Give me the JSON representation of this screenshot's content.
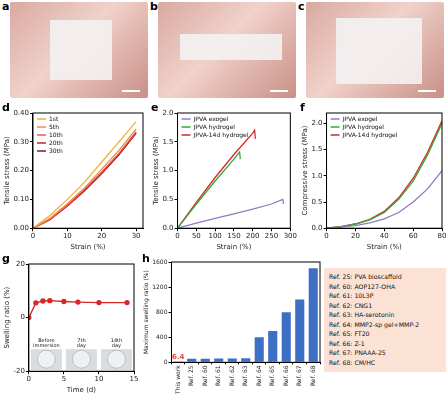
{
  "photos": [
    {
      "panel_label": "a"
    },
    {
      "panel_label": "b"
    },
    {
      "panel_label": "c"
    }
  ],
  "chart_data": [
    {
      "panel_label": "d",
      "type": "line",
      "x_label": "Strain (%)",
      "y_label": "Tensile stress (MPa)",
      "xlim": [
        0,
        32
      ],
      "xticks": [
        0,
        10,
        20,
        30
      ],
      "ylim": [
        0,
        0.4
      ],
      "yticks": [
        {
          "value": 0,
          "label": "0.00"
        },
        {
          "value": 0.1,
          "label": "0.10"
        },
        {
          "value": 0.2,
          "label": "0.20"
        },
        {
          "value": 0.3,
          "label": "0.30"
        },
        {
          "value": 0.4,
          "label": "0.40"
        }
      ],
      "grid": false,
      "legend": "top-left",
      "series": [
        {
          "name": "1st",
          "color": "#f2b134",
          "x": [
            0,
            5,
            10,
            15,
            20,
            25,
            30
          ],
          "values": [
            0,
            0.045,
            0.1,
            0.16,
            0.23,
            0.3,
            0.37
          ]
        },
        {
          "name": "5th",
          "color": "#f08a4b",
          "x": [
            0,
            5,
            10,
            15,
            20,
            25,
            30
          ],
          "values": [
            0,
            0.035,
            0.085,
            0.14,
            0.205,
            0.27,
            0.345
          ]
        },
        {
          "name": "10th",
          "color": "#e8584a",
          "x": [
            0,
            5,
            10,
            15,
            20,
            25,
            30
          ],
          "values": [
            0,
            0.03,
            0.08,
            0.135,
            0.195,
            0.26,
            0.335
          ]
        },
        {
          "name": "20th",
          "color": "#c8202a",
          "x": [
            0,
            5,
            10,
            15,
            20,
            25,
            30
          ],
          "values": [
            0,
            0.03,
            0.078,
            0.132,
            0.192,
            0.258,
            0.33
          ]
        },
        {
          "name": "30th",
          "color": "#8b1a1a",
          "x": [
            0,
            5,
            10,
            15,
            20,
            25,
            30
          ],
          "values": [
            0,
            0.03,
            0.077,
            0.13,
            0.19,
            0.255,
            0.33
          ]
        }
      ]
    },
    {
      "panel_label": "e",
      "type": "line",
      "x_label": "Strain (%)",
      "y_label": "Tensile stress (MPa)",
      "xlim": [
        0,
        300
      ],
      "xticks": [
        0,
        50,
        100,
        150,
        200,
        250,
        300
      ],
      "ylim": [
        0,
        2
      ],
      "yticks": [
        {
          "value": 0,
          "label": "0.0"
        },
        {
          "value": 0.5,
          "label": "0.5"
        },
        {
          "value": 1,
          "label": "1.0"
        },
        {
          "value": 1.5,
          "label": "1.5"
        },
        {
          "value": 2,
          "label": "2.0"
        }
      ],
      "grid": false,
      "legend": "top-left",
      "series": [
        {
          "name": "JPVA exogel",
          "color": "#8e7cc3",
          "x": [
            0,
            50,
            100,
            150,
            200,
            250,
            280,
            282
          ],
          "values": [
            0,
            0.09,
            0.17,
            0.25,
            0.33,
            0.42,
            0.5,
            0.42
          ]
        },
        {
          "name": "JPVA hydrogel",
          "color": "#3aa63a",
          "x": [
            0,
            50,
            100,
            150,
            165,
            167
          ],
          "values": [
            0,
            0.42,
            0.82,
            1.2,
            1.32,
            1.2
          ]
        },
        {
          "name": "JPVA-14d hydrogel",
          "color": "#d62728",
          "x": [
            0,
            50,
            100,
            150,
            200,
            205,
            207
          ],
          "values": [
            0,
            0.45,
            0.88,
            1.28,
            1.65,
            1.7,
            1.55
          ]
        }
      ]
    },
    {
      "panel_label": "f",
      "type": "line",
      "x_label": "Strain (%)",
      "y_label": "Compressive stress (MPa)",
      "xlim": [
        0,
        80
      ],
      "xticks": [
        0,
        20,
        40,
        60,
        80
      ],
      "ylim": [
        0,
        2.2
      ],
      "yticks": [
        {
          "value": 0,
          "label": "0.0"
        },
        {
          "value": 0.5,
          "label": "0.5"
        },
        {
          "value": 1,
          "label": "1.0"
        },
        {
          "value": 1.5,
          "label": "1.5"
        },
        {
          "value": 2,
          "label": "2.0"
        }
      ],
      "grid": false,
      "legend": "top-left",
      "series": [
        {
          "name": "JPVA exogel",
          "color": "#8e7cc3",
          "x": [
            0,
            10,
            20,
            30,
            40,
            50,
            60,
            70,
            80
          ],
          "values": [
            0,
            0.02,
            0.05,
            0.1,
            0.18,
            0.3,
            0.5,
            0.75,
            1.1
          ]
        },
        {
          "name": "JPVA hydrogel",
          "color": "#3aa63a",
          "x": [
            0,
            10,
            20,
            30,
            40,
            50,
            60,
            70,
            80
          ],
          "values": [
            0,
            0.03,
            0.08,
            0.16,
            0.3,
            0.55,
            0.9,
            1.4,
            2.0
          ]
        },
        {
          "name": "JPVA-14d hydrogel",
          "color": "#d62728",
          "x": [
            0,
            10,
            20,
            30,
            40,
            50,
            60,
            70,
            80
          ],
          "values": [
            0,
            0.03,
            0.08,
            0.17,
            0.32,
            0.58,
            0.95,
            1.45,
            2.05
          ]
        }
      ]
    },
    {
      "panel_label": "g",
      "type": "line",
      "x_label": "Time (d)",
      "y_label": "Swelling ratio (%)",
      "xlim": [
        0,
        15
      ],
      "xticks": [
        0,
        5,
        10,
        15
      ],
      "ylim": [
        -20,
        20
      ],
      "yticks": [
        -20,
        0,
        20
      ],
      "grid": false,
      "marker": "circle",
      "annotations": [
        "Before immersion",
        "7th day",
        "14th day"
      ],
      "series": [
        {
          "name": "Swelling ratio",
          "color": "#d62728",
          "x": [
            0,
            1,
            2,
            3,
            5,
            7,
            10,
            14
          ],
          "values": [
            0,
            5.5,
            6.2,
            6.3,
            6,
            5.8,
            5.6,
            5.6
          ]
        }
      ]
    },
    {
      "panel_label": "h",
      "type": "bar",
      "y_label": "Maximum swelling ratio (%)",
      "categories": [
        "This work",
        "Ref. 25",
        "Ref. 60",
        "Ref. 61",
        "Ref. 62",
        "Ref. 63",
        "Ref. 64",
        "Ref. 65",
        "Ref. 66",
        "Ref. 67",
        "Ref. 68"
      ],
      "values": [
        6.4,
        55,
        58,
        62,
        62,
        65,
        400,
        500,
        800,
        1000,
        1500
      ],
      "value_labels": [
        "6.4",
        null,
        null,
        null,
        null,
        null,
        null,
        null,
        null,
        null,
        null
      ],
      "colors": [
        "#e8453c",
        "#3d6fc4",
        "#3d6fc4",
        "#3d6fc4",
        "#3d6fc4",
        "#3d6fc4",
        "#3d6fc4",
        "#3d6fc4",
        "#3d6fc4",
        "#3d6fc4",
        "#3d6fc4"
      ],
      "ylim": [
        0,
        1600
      ],
      "yticks": [
        0,
        400,
        800,
        1200,
        1600
      ],
      "grid": false,
      "data_labels": true
    }
  ],
  "reference_list": [
    "Ref. 25: PVA bioscaffold",
    "Ref. 60: AOP127-OHA",
    "Ref. 61: 10L3P",
    "Ref. 62: CNG1",
    "Ref. 63: HA-serotonin",
    "Ref. 64: MMP2-sp gel+MMP-2",
    "Ref. 65: FT20",
    "Ref. 66: Z-1",
    "Ref. 67: PNAAA-25",
    "Ref. 68: CM/HC"
  ]
}
